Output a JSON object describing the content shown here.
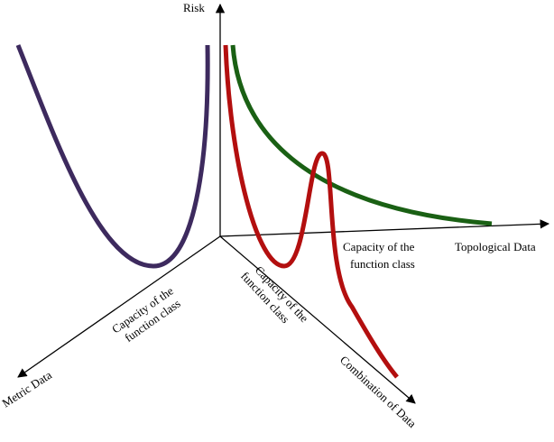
{
  "axes": {
    "y": "Risk",
    "x": "Topological Data",
    "left": "Metric Data",
    "diagonal": "Combination of Data"
  },
  "capacity_labels": {
    "topological": [
      "Capacity of the",
      "function class"
    ],
    "metric": [
      "Capacity of the",
      "function class"
    ],
    "combination": [
      "Capacity of the",
      "function class"
    ]
  }
}
